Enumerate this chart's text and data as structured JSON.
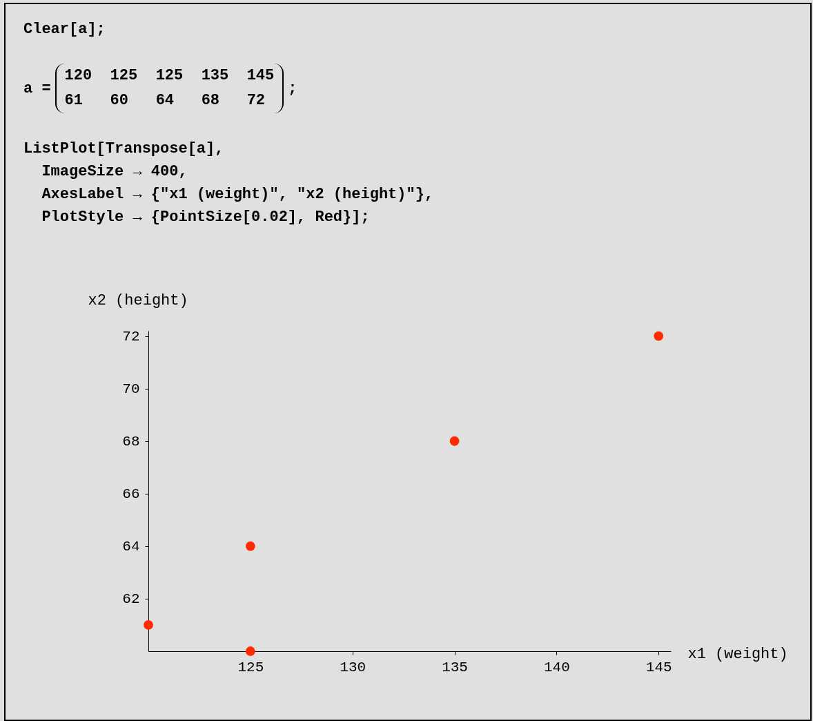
{
  "chart_data": {
    "type": "scatter",
    "annotations": [
      "Clear[a];",
      "a =",
      "120  125  125  135  145",
      "61   60   64   68   72",
      ";",
      "ListPlot[Transpose[a],",
      "ImageSize → 400,",
      "AxesLabel → {\"x1 (weight)\", \"x2 (height)\"},",
      "PlotStyle → {PointSize[0.02], Red}];"
    ],
    "xlabel": "x1 (weight)",
    "ylabel": "x2 (height)",
    "x": [
      120,
      125,
      125,
      135,
      145
    ],
    "series": [
      {
        "color": "#ff2a00",
        "values": [
          61,
          60,
          64,
          68,
          72
        ]
      }
    ],
    "xlim": [
      120,
      145.6
    ],
    "ylim": [
      60,
      72.2
    ],
    "xticks": [
      125,
      130,
      135,
      140,
      145
    ],
    "yticks": [
      62,
      64,
      66,
      68,
      70,
      72
    ],
    "legend": false
  }
}
